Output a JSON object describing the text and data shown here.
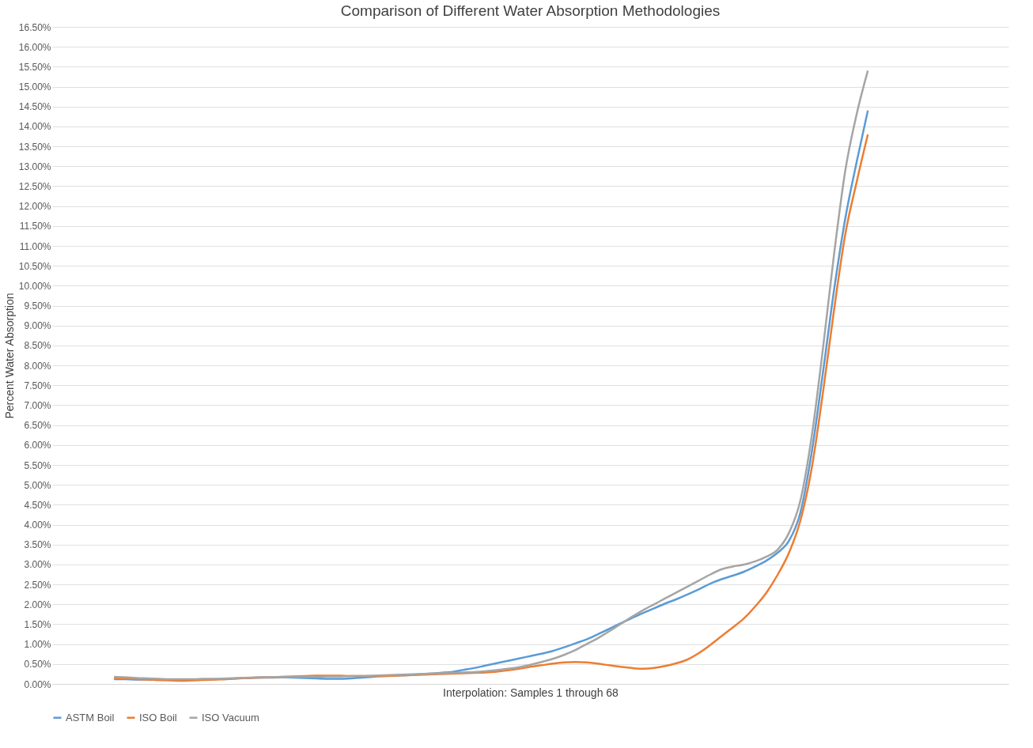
{
  "chart_data": {
    "type": "line",
    "title": "Comparison of Different Water Absorption Methodologies",
    "xlabel": "Interpolation: Samples 1 through 68",
    "ylabel": "Percent Water Absorption",
    "categories": [
      null,
      null,
      null,
      null,
      null,
      null,
      null,
      null,
      null,
      null,
      null,
      null,
      null,
      null,
      null,
      null,
      null,
      null,
      null,
      null,
      null,
      null,
      null,
      null,
      null,
      null,
      null,
      null,
      null,
      null,
      null,
      null,
      null,
      null,
      null,
      null,
      null,
      null,
      null,
      null,
      null,
      null,
      null,
      null,
      null,
      null,
      null,
      null,
      null,
      null,
      null,
      null,
      null,
      null,
      null,
      null,
      null,
      null,
      null,
      null,
      null,
      null,
      null,
      null,
      null,
      null,
      null,
      null,
      null,
      null,
      null,
      null,
      null,
      null,
      null,
      null,
      null,
      null,
      null,
      null,
      null,
      null,
      null,
      null,
      null
    ],
    "series": [
      {
        "name": "ASTM Boil",
        "color": "#5b9bd5",
        "values": [
          null,
          null,
          null,
          null,
          null,
          0.12,
          0.12,
          0.11,
          0.11,
          0.1,
          0.1,
          0.1,
          0.1,
          0.11,
          0.12,
          0.13,
          0.14,
          0.15,
          0.16,
          0.16,
          0.17,
          0.16,
          0.15,
          0.14,
          0.13,
          0.13,
          0.14,
          0.16,
          0.18,
          0.2,
          0.21,
          0.22,
          0.24,
          0.26,
          0.28,
          0.3,
          0.35,
          0.4,
          0.46,
          0.52,
          0.58,
          0.64,
          0.7,
          0.76,
          0.83,
          0.92,
          1.02,
          1.12,
          1.25,
          1.38,
          1.52,
          1.65,
          1.78,
          1.9,
          2.02,
          2.13,
          2.25,
          2.38,
          2.52,
          2.63,
          2.72,
          2.82,
          2.95,
          3.1,
          3.3,
          3.6,
          4.3,
          5.8,
          7.8,
          9.9,
          11.7,
          13.1,
          14.4,
          null,
          null,
          null,
          null,
          null,
          null,
          null,
          null,
          null,
          null,
          null,
          null
        ]
      },
      {
        "name": "ISO Boil",
        "color": "#ed7d31",
        "values": [
          null,
          null,
          null,
          null,
          null,
          0.15,
          0.14,
          0.12,
          0.11,
          0.1,
          0.09,
          0.08,
          0.09,
          0.1,
          0.11,
          0.12,
          0.14,
          0.15,
          0.16,
          0.17,
          0.18,
          0.19,
          0.2,
          0.21,
          0.21,
          0.21,
          0.2,
          0.2,
          0.2,
          0.2,
          0.21,
          0.22,
          0.23,
          0.24,
          0.25,
          0.26,
          0.27,
          0.28,
          0.29,
          0.31,
          0.34,
          0.38,
          0.43,
          0.47,
          0.51,
          0.54,
          0.55,
          0.54,
          0.51,
          0.47,
          0.43,
          0.4,
          0.38,
          0.4,
          0.45,
          0.52,
          0.62,
          0.78,
          0.98,
          1.2,
          1.42,
          1.65,
          1.95,
          2.3,
          2.75,
          3.3,
          4.1,
          5.4,
          7.3,
          9.4,
          11.3,
          12.6,
          13.8,
          null,
          null,
          null,
          null,
          null,
          null,
          null,
          null,
          null,
          null,
          null,
          null
        ]
      },
      {
        "name": "ISO Vacuum",
        "color": "#a5a5a5",
        "values": [
          null,
          null,
          null,
          null,
          null,
          0.18,
          0.17,
          0.15,
          0.14,
          0.13,
          0.12,
          0.12,
          0.12,
          0.13,
          0.13,
          0.14,
          0.15,
          0.16,
          0.17,
          0.17,
          0.18,
          0.18,
          0.18,
          0.18,
          0.19,
          0.19,
          0.2,
          0.2,
          0.21,
          0.22,
          0.23,
          0.24,
          0.25,
          0.26,
          0.27,
          0.28,
          0.29,
          0.3,
          0.32,
          0.35,
          0.38,
          0.42,
          0.48,
          0.55,
          0.63,
          0.73,
          0.85,
          1.0,
          1.15,
          1.32,
          1.5,
          1.68,
          1.85,
          2.0,
          2.15,
          2.3,
          2.45,
          2.6,
          2.75,
          2.88,
          2.95,
          3.0,
          3.08,
          3.2,
          3.38,
          3.8,
          4.6,
          6.2,
          8.4,
          10.8,
          12.9,
          14.3,
          15.4,
          null,
          null,
          null,
          null,
          null,
          null,
          null,
          null,
          null,
          null,
          null,
          null
        ]
      }
    ],
    "ylim": [
      0,
      16.5
    ],
    "yticks": [
      {
        "value": 0,
        "label": "0.00%"
      },
      {
        "value": 0.5,
        "label": "0.50%"
      },
      {
        "value": 1,
        "label": "1.00%"
      },
      {
        "value": 1.5,
        "label": "1.50%"
      },
      {
        "value": 2,
        "label": "2.00%"
      },
      {
        "value": 2.5,
        "label": "2.50%"
      },
      {
        "value": 3,
        "label": "3.00%"
      },
      {
        "value": 3.5,
        "label": "3.50%"
      },
      {
        "value": 4,
        "label": "4.00%"
      },
      {
        "value": 4.5,
        "label": "4.50%"
      },
      {
        "value": 5,
        "label": "5.00%"
      },
      {
        "value": 5.5,
        "label": "5.50%"
      },
      {
        "value": 6,
        "label": "6.00%"
      },
      {
        "value": 6.5,
        "label": "6.50%"
      },
      {
        "value": 7,
        "label": "7.00%"
      },
      {
        "value": 7.5,
        "label": "7.50%"
      },
      {
        "value": 8,
        "label": "8.00%"
      },
      {
        "value": 8.5,
        "label": "8.50%"
      },
      {
        "value": 9,
        "label": "9.00%"
      },
      {
        "value": 9.5,
        "label": "9.50%"
      },
      {
        "value": 10,
        "label": "10.00%"
      },
      {
        "value": 10.5,
        "label": "10.50%"
      },
      {
        "value": 11,
        "label": "11.00%"
      },
      {
        "value": 11.5,
        "label": "11.50%"
      },
      {
        "value": 12,
        "label": "12.00%"
      },
      {
        "value": 12.5,
        "label": "12.50%"
      },
      {
        "value": 13,
        "label": "13.00%"
      },
      {
        "value": 13.5,
        "label": "13.50%"
      },
      {
        "value": 14,
        "label": "14.00%"
      },
      {
        "value": 14.5,
        "label": "14.50%"
      },
      {
        "value": 15,
        "label": "15.00%"
      },
      {
        "value": 15.5,
        "label": "15.50%"
      },
      {
        "value": 16,
        "label": "16.00%"
      },
      {
        "value": 16.5,
        "label": "16.50%"
      }
    ],
    "grid": "y",
    "legend": "bottom",
    "tick_labels": "y",
    "marker": "none",
    "line_style": "solid"
  }
}
